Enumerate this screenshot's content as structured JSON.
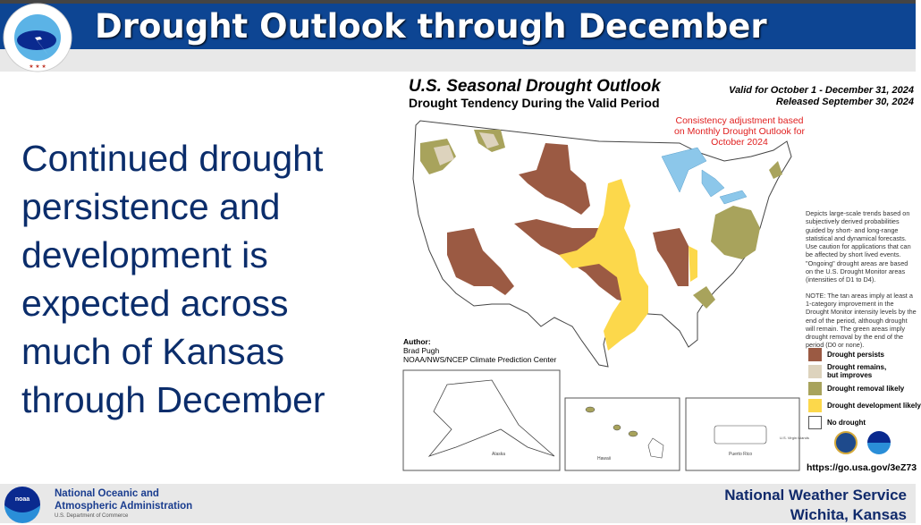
{
  "header": {
    "title": "Drought Outlook through December",
    "logo_text": "NATIONAL WEATHER SERVICE"
  },
  "body_text": "Continued drought persistence and development is expected across much of Kansas through December",
  "map": {
    "title": "U.S. Seasonal Drought Outlook",
    "subtitle": "Drought Tendency During the Valid Period",
    "valid": "Valid for October 1 - December 31, 2024",
    "released": "Released September 30, 2024",
    "consistency_note": "Consistency adjustment based on Monthly Drought Outlook for October 2024",
    "description": "Depicts large-scale trends based on subjectively derived probabilities guided by short- and long-range statistical and dynamical forecasts. Use caution for applications that can be affected by short lived events. \"Ongoing\" drought areas are based on the U.S. Drought Monitor areas (intensities of D1 to D4).",
    "note": "NOTE: The tan areas imply at least a 1-category improvement in the Drought Monitor intensity levels by the end of the period, although drought will remain. The green areas imply drought removal by the end of the period (D0 or none).",
    "author_label": "Author:",
    "author_name": "Brad Pugh",
    "author_org": "NOAA/NWS/NCEP Climate Prediction Center",
    "insets": {
      "alaska": "Alaska",
      "hawaii": "Hawaii",
      "puerto_rico": "Puerto Rico",
      "virgin_islands": "U.S. Virgin Islands"
    },
    "legend": [
      {
        "label": "Drought persists",
        "color": "#9b5a43"
      },
      {
        "label": "Drought remains, but improves",
        "color": "#ddd3bd"
      },
      {
        "label": "Drought removal likely",
        "color": "#a8a35c"
      },
      {
        "label": "Drought development likely",
        "color": "#fcd84b"
      },
      {
        "label": "No drought",
        "color": "#ffffff"
      }
    ],
    "url": "https://go.usa.gov/3eZ73"
  },
  "footer": {
    "noaa_line1": "National Oceanic and",
    "noaa_line2": "Atmospheric Administration",
    "noaa_dept": "U.S. Department of Commerce",
    "office_line1": "National Weather Service",
    "office_line2": "Wichita, Kansas"
  }
}
